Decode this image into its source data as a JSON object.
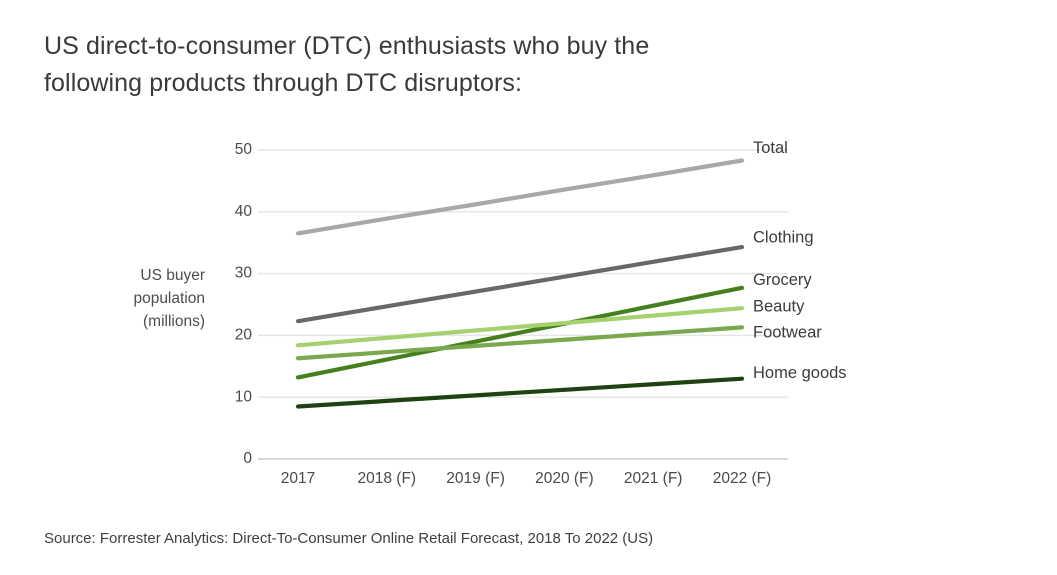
{
  "title": "US direct-to-consumer (DTC) enthusiasts who buy the following products through DTC disruptors:",
  "ylabel_display": "US buyer\npopulation\n(millions)",
  "source": "Source: Forrester Analytics: Direct-To-Consumer Online Retail Forecast, 2018 To 2022 (US)",
  "chart_data": {
    "type": "line",
    "title": "US direct-to-consumer (DTC) enthusiasts who buy the following products through DTC disruptors:",
    "xlabel": "",
    "ylabel": "US buyer population (millions)",
    "categories": [
      "2017",
      "2018 (F)",
      "2019 (F)",
      "2020 (F)",
      "2021 (F)",
      "2022 (F)"
    ],
    "series": [
      {
        "name": "Total",
        "color": "#a8a8a8",
        "values": [
          36.5,
          38.9,
          41.2,
          43.6,
          45.9,
          48.3
        ]
      },
      {
        "name": "Clothing",
        "color": "#686868",
        "values": [
          22.3,
          24.7,
          27.1,
          29.5,
          31.9,
          34.3
        ]
      },
      {
        "name": "Grocery",
        "color": "#45801f",
        "values": [
          13.2,
          16.1,
          19,
          21.9,
          24.8,
          27.7
        ]
      },
      {
        "name": "Beauty",
        "color": "#a7d06f",
        "values": [
          18.4,
          19.6,
          20.8,
          22,
          23.2,
          24.4
        ]
      },
      {
        "name": "Footwear",
        "color": "#7aa84d",
        "values": [
          16.3,
          17.3,
          18.3,
          19.3,
          20.3,
          21.3
        ]
      },
      {
        "name": "Home goods",
        "color": "#1e4212",
        "values": [
          8.5,
          9.4,
          10.3,
          11.2,
          12.1,
          13
        ]
      }
    ],
    "yticks": [
      0,
      10,
      20,
      30,
      40,
      50
    ],
    "ylim": [
      0,
      50
    ],
    "grid": true,
    "legend_position": "right-end-of-line"
  }
}
